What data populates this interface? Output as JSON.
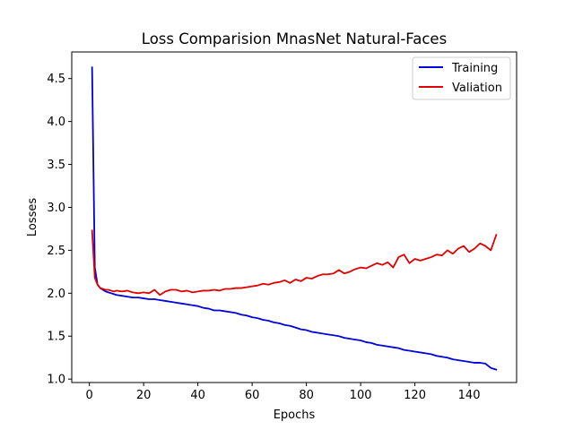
{
  "chart_data": {
    "type": "line",
    "title": "Loss Comparision MnasNet Natural-Faces",
    "xlabel": "Epochs",
    "ylabel": "Losses",
    "xlim": [
      -6.5,
      157.5
    ],
    "ylim": [
      0.96,
      4.81
    ],
    "xticks": [
      0,
      20,
      40,
      60,
      80,
      100,
      120,
      140
    ],
    "yticks": [
      1.0,
      1.5,
      2.0,
      2.5,
      3.0,
      3.5,
      4.0,
      4.5
    ],
    "ytick_labels": [
      "1.0",
      "1.5",
      "2.0",
      "2.5",
      "3.0",
      "3.5",
      "4.0",
      "4.5"
    ],
    "grid": false,
    "legend_position": "top-right",
    "series": [
      {
        "name": "Training",
        "color": "#0000dd",
        "x": [
          1,
          2,
          3,
          4,
          5,
          6,
          7,
          8,
          9,
          10,
          12,
          14,
          16,
          18,
          20,
          22,
          24,
          26,
          28,
          30,
          32,
          34,
          36,
          38,
          40,
          42,
          44,
          46,
          48,
          50,
          52,
          54,
          56,
          58,
          60,
          62,
          64,
          66,
          68,
          70,
          72,
          74,
          76,
          78,
          80,
          82,
          84,
          86,
          88,
          90,
          92,
          94,
          96,
          98,
          100,
          102,
          104,
          106,
          108,
          110,
          112,
          114,
          116,
          118,
          120,
          122,
          124,
          126,
          128,
          130,
          132,
          134,
          136,
          138,
          140,
          142,
          144,
          146,
          148,
          150
        ],
        "y": [
          4.63,
          2.3,
          2.1,
          2.06,
          2.04,
          2.02,
          2.01,
          2.0,
          1.99,
          1.98,
          1.97,
          1.96,
          1.95,
          1.95,
          1.94,
          1.93,
          1.93,
          1.92,
          1.91,
          1.9,
          1.89,
          1.88,
          1.87,
          1.86,
          1.85,
          1.83,
          1.82,
          1.8,
          1.8,
          1.79,
          1.78,
          1.77,
          1.75,
          1.74,
          1.72,
          1.71,
          1.69,
          1.68,
          1.66,
          1.65,
          1.63,
          1.62,
          1.6,
          1.58,
          1.57,
          1.55,
          1.54,
          1.53,
          1.52,
          1.51,
          1.5,
          1.48,
          1.47,
          1.46,
          1.45,
          1.43,
          1.42,
          1.4,
          1.39,
          1.38,
          1.37,
          1.36,
          1.34,
          1.33,
          1.32,
          1.31,
          1.3,
          1.29,
          1.27,
          1.26,
          1.25,
          1.23,
          1.22,
          1.21,
          1.2,
          1.19,
          1.19,
          1.18,
          1.13,
          1.11
        ]
      },
      {
        "name": "Valiation",
        "color": "#e00000",
        "x": [
          1,
          2,
          3,
          4,
          5,
          6,
          7,
          8,
          9,
          10,
          12,
          14,
          16,
          18,
          20,
          22,
          24,
          26,
          28,
          30,
          32,
          34,
          36,
          38,
          40,
          42,
          44,
          46,
          48,
          50,
          52,
          54,
          56,
          58,
          60,
          62,
          64,
          66,
          68,
          70,
          72,
          74,
          76,
          78,
          80,
          82,
          84,
          86,
          88,
          90,
          92,
          94,
          96,
          98,
          100,
          102,
          104,
          106,
          108,
          110,
          112,
          114,
          116,
          118,
          120,
          122,
          124,
          126,
          128,
          130,
          132,
          134,
          136,
          138,
          140,
          142,
          144,
          146,
          148,
          150
        ],
        "y": [
          2.73,
          2.18,
          2.1,
          2.06,
          2.05,
          2.04,
          2.04,
          2.03,
          2.02,
          2.03,
          2.02,
          2.03,
          2.01,
          2.0,
          2.01,
          2.0,
          2.04,
          1.98,
          2.02,
          2.04,
          2.04,
          2.02,
          2.03,
          2.01,
          2.02,
          2.03,
          2.03,
          2.04,
          2.03,
          2.05,
          2.05,
          2.06,
          2.06,
          2.07,
          2.08,
          2.09,
          2.11,
          2.1,
          2.12,
          2.13,
          2.15,
          2.12,
          2.16,
          2.14,
          2.18,
          2.17,
          2.2,
          2.22,
          2.22,
          2.23,
          2.27,
          2.23,
          2.25,
          2.28,
          2.3,
          2.29,
          2.32,
          2.35,
          2.33,
          2.36,
          2.3,
          2.42,
          2.45,
          2.35,
          2.4,
          2.38,
          2.4,
          2.42,
          2.45,
          2.44,
          2.5,
          2.46,
          2.52,
          2.55,
          2.48,
          2.52,
          2.58,
          2.55,
          2.5,
          2.68
        ]
      }
    ]
  }
}
